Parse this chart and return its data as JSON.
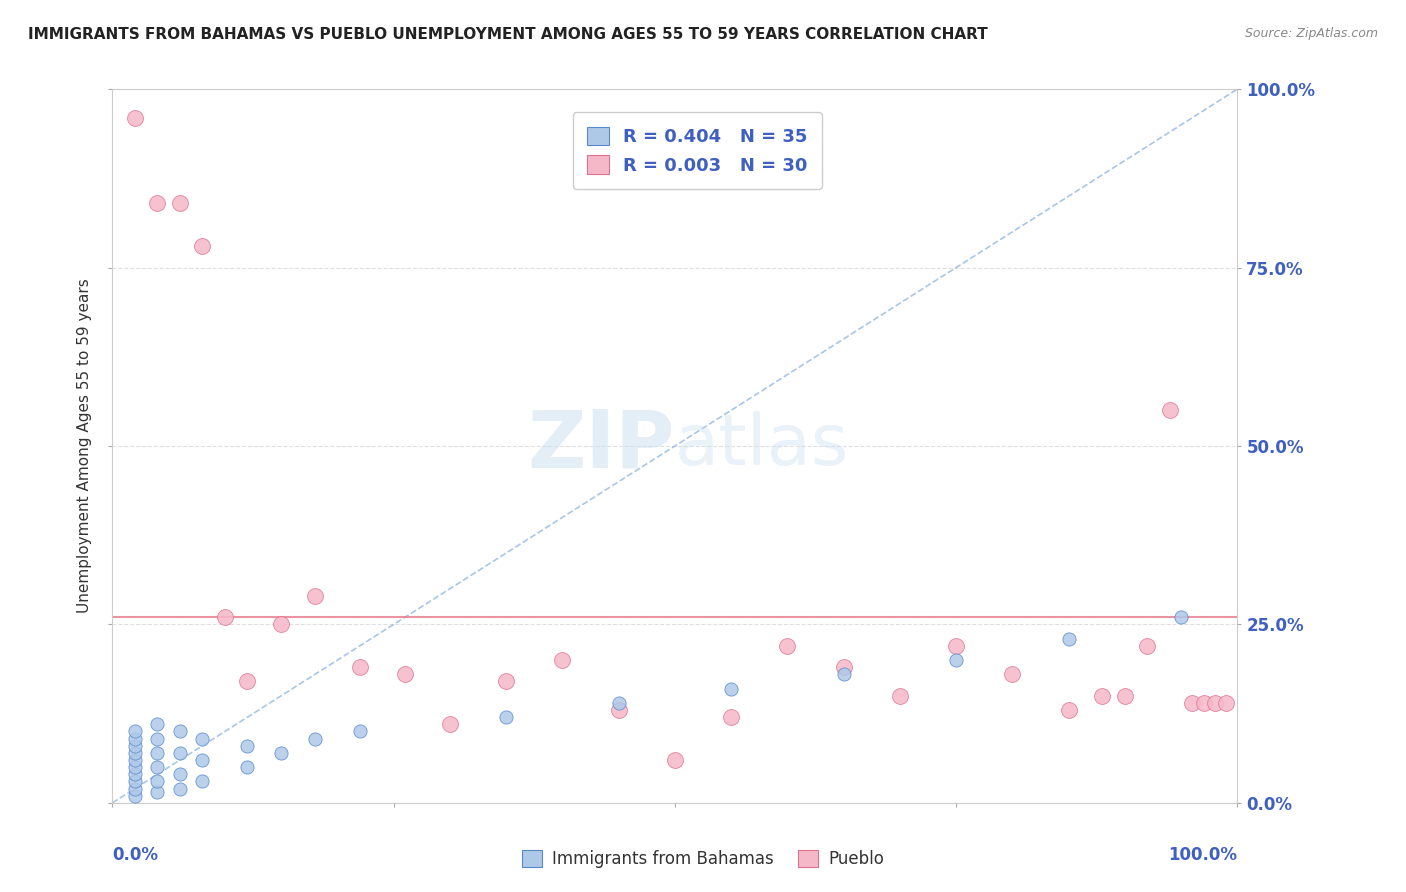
{
  "title": "IMMIGRANTS FROM BAHAMAS VS PUEBLO UNEMPLOYMENT AMONG AGES 55 TO 59 YEARS CORRELATION CHART",
  "source": "Source: ZipAtlas.com",
  "ylabel": "Unemployment Among Ages 55 to 59 years",
  "series1_label": "Immigrants from Bahamas",
  "series1_color": "#aec8e8",
  "series1_edge_color": "#5588cc",
  "series1_R": "R = 0.404",
  "series1_N": "N = 35",
  "series2_label": "Pueblo",
  "series2_color": "#f5b8c8",
  "series2_edge_color": "#e07090",
  "series2_R": "R = 0.003",
  "series2_N": "N = 30",
  "reg_line1_color": "#8ab4e0",
  "reg_line2_color": "#e88090",
  "watermark_zip_color": "#c8dff0",
  "watermark_atlas_color": "#c8dff0",
  "background_color": "#ffffff",
  "grid_color": "#e0e0e0",
  "axis_label_color": "#4060c0",
  "title_color": "#222222",
  "source_color": "#888888",
  "bahamas_x": [
    0.02,
    0.02,
    0.02,
    0.02,
    0.02,
    0.02,
    0.02,
    0.02,
    0.02,
    0.02,
    0.04,
    0.04,
    0.04,
    0.04,
    0.04,
    0.04,
    0.06,
    0.06,
    0.06,
    0.06,
    0.08,
    0.08,
    0.08,
    0.12,
    0.12,
    0.15,
    0.18,
    0.22,
    0.35,
    0.45,
    0.55,
    0.65,
    0.75,
    0.85,
    0.95
  ],
  "bahamas_y": [
    1.0,
    2.0,
    3.0,
    4.0,
    5.0,
    6.0,
    7.0,
    8.0,
    9.0,
    10.0,
    1.5,
    3.0,
    5.0,
    7.0,
    9.0,
    11.0,
    2.0,
    4.0,
    7.0,
    10.0,
    3.0,
    6.0,
    9.0,
    5.0,
    8.0,
    7.0,
    9.0,
    10.0,
    12.0,
    14.0,
    16.0,
    18.0,
    20.0,
    23.0,
    26.0
  ],
  "pueblo_x": [
    0.02,
    0.04,
    0.06,
    0.08,
    0.1,
    0.12,
    0.15,
    0.18,
    0.22,
    0.26,
    0.3,
    0.35,
    0.4,
    0.45,
    0.5,
    0.55,
    0.6,
    0.65,
    0.7,
    0.75,
    0.8,
    0.85,
    0.88,
    0.9,
    0.92,
    0.94,
    0.96,
    0.97,
    0.98,
    0.99
  ],
  "pueblo_y": [
    96.0,
    84.0,
    84.0,
    78.0,
    26.0,
    17.0,
    25.0,
    29.0,
    19.0,
    18.0,
    11.0,
    17.0,
    20.0,
    13.0,
    6.0,
    12.0,
    22.0,
    19.0,
    15.0,
    22.0,
    18.0,
    13.0,
    15.0,
    15.0,
    22.0,
    55.0,
    14.0,
    14.0,
    14.0,
    14.0
  ],
  "reg_line1_x": [
    0.0,
    1.0
  ],
  "reg_line1_y": [
    0.0,
    100.0
  ],
  "reg_line2_y": 26.0,
  "ylim": [
    0,
    100
  ],
  "xlim": [
    0,
    1.0
  ],
  "yticks": [
    0,
    25,
    50,
    75,
    100
  ],
  "xtick_positions": [
    0,
    0.25,
    0.5,
    0.75,
    1.0
  ]
}
